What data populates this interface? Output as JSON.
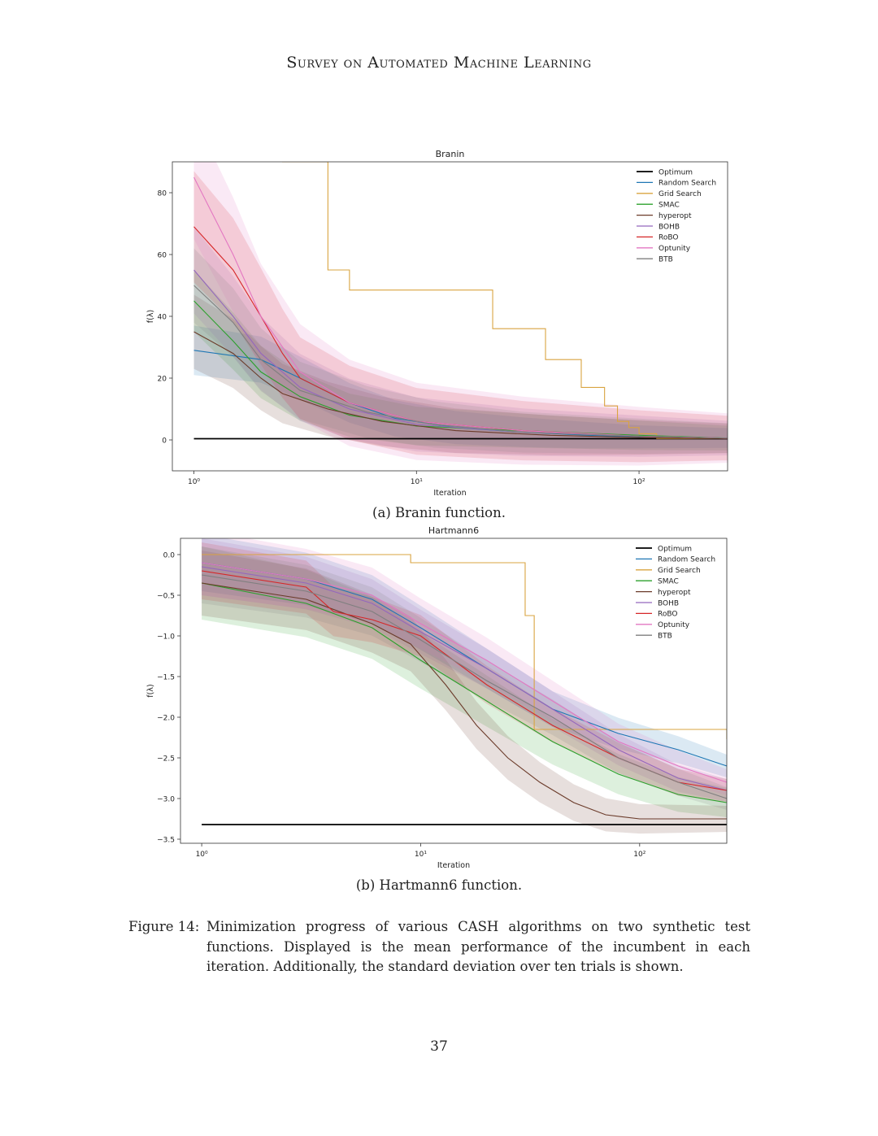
{
  "header": {
    "running_title": "Survey on Automated Machine Learning"
  },
  "figure": {
    "label": "Figure 14:",
    "caption": "Minimization progress of various CASH algorithms on two synthetic test functions. Displayed is the mean performance of the incumbent in each iteration. Additionally, the standard deviation over ten trials is shown.",
    "subcaption_a": "(a) Branin function.",
    "subcaption_b": "(b) Hartmann6 function."
  },
  "page_number": "37",
  "colors": {
    "Optimum": "#000000",
    "Random Search": "#1f77b4",
    "Grid Search": "#d9a441",
    "SMAC": "#2ca02c",
    "hyperopt": "#6b3b2a",
    "BOHB": "#9467bd",
    "RoBO": "#d62728",
    "Optunity": "#e377c2",
    "BTB": "#7f7f7f"
  },
  "chart_data": [
    {
      "type": "line",
      "title": "Branin",
      "xlabel": "Iteration",
      "ylabel": "f(λ)",
      "xscale": "log",
      "xlim": [
        0.8,
        250
      ],
      "ylim": [
        -10,
        90
      ],
      "xticks": [
        {
          "value": 1,
          "label": "10⁰"
        },
        {
          "value": 10,
          "label": "10¹"
        },
        {
          "value": 100,
          "label": "10²"
        }
      ],
      "yticks": [
        0,
        20,
        40,
        60,
        80
      ],
      "legend": [
        "Optimum",
        "Random Search",
        "Grid Search",
        "SMAC",
        "hyperopt",
        "BOHB",
        "RoBO",
        "Optunity",
        "BTB"
      ],
      "legend_position": "top-right",
      "series": [
        {
          "name": "Optimum",
          "x": [
            1,
            250
          ],
          "y": [
            0.4,
            0.4
          ],
          "band": 0
        },
        {
          "name": "Grid Search",
          "step": true,
          "x": [
            1,
            2.5,
            4,
            5,
            20,
            22,
            35,
            38,
            50,
            55,
            70,
            80,
            90,
            100,
            120,
            250
          ],
          "y": [
            150,
            90,
            55,
            48.5,
            48.5,
            36,
            36,
            26,
            26,
            17,
            11,
            6,
            4,
            2,
            0.5,
            0.5
          ],
          "band": 0
        },
        {
          "name": "Random Search",
          "x": [
            1,
            2,
            3,
            5,
            8,
            15,
            30,
            60,
            100,
            250
          ],
          "y": [
            29,
            26,
            20,
            12,
            7,
            4,
            2.5,
            1.5,
            1,
            0.6
          ],
          "band": 8
        },
        {
          "name": "SMAC",
          "x": [
            1,
            1.5,
            2,
            3,
            5,
            10,
            30,
            100,
            250
          ],
          "y": [
            45,
            32,
            22,
            14,
            8,
            4.5,
            3,
            1.5,
            0.6
          ],
          "band": 10
        },
        {
          "name": "hyperopt",
          "x": [
            1,
            1.5,
            2,
            2.5,
            4,
            7,
            15,
            40,
            100,
            250
          ],
          "y": [
            35,
            28,
            20,
            15,
            10,
            6,
            3,
            1.5,
            0.8,
            0.5
          ],
          "band": 12
        },
        {
          "name": "BOHB",
          "x": [
            1,
            1.5,
            2,
            3,
            5,
            10,
            30,
            100,
            250
          ],
          "y": [
            55,
            40,
            28,
            17,
            10,
            5,
            2.5,
            1.2,
            0.6
          ],
          "band": 14
        },
        {
          "name": "RoBO",
          "x": [
            1,
            1.5,
            2,
            2.5,
            3,
            5,
            10,
            30,
            100,
            250
          ],
          "y": [
            69,
            55,
            40,
            28,
            20,
            12,
            6,
            3,
            1.2,
            0.6
          ],
          "band": 18
        },
        {
          "name": "Optunity",
          "x": [
            1,
            1.5,
            2,
            3,
            5,
            10,
            30,
            100,
            250
          ],
          "y": [
            85,
            60,
            40,
            22,
            12,
            6,
            3,
            1.2,
            0.6
          ],
          "band": 20
        },
        {
          "name": "BTB",
          "x": [
            1,
            1.5,
            2,
            3,
            6,
            12,
            30,
            100,
            250
          ],
          "y": [
            50,
            38,
            26,
            16,
            9,
            5,
            2.5,
            1.2,
            0.6
          ],
          "band": 12
        }
      ]
    },
    {
      "type": "line",
      "title": "Hartmann6",
      "xlabel": "Iteration",
      "ylabel": "f(λ)",
      "xscale": "log",
      "xlim": [
        0.8,
        250
      ],
      "ylim": [
        -3.55,
        0.2
      ],
      "xticks": [
        {
          "value": 1,
          "label": "10⁰"
        },
        {
          "value": 10,
          "label": "10¹"
        },
        {
          "value": 100,
          "label": "10²"
        }
      ],
      "yticks": [
        0.0,
        -0.5,
        -1.0,
        -1.5,
        -2.0,
        -2.5,
        -3.0,
        -3.5
      ],
      "legend": [
        "Optimum",
        "Random Search",
        "Grid Search",
        "SMAC",
        "hyperopt",
        "BOHB",
        "RoBO",
        "Optunity",
        "BTB"
      ],
      "legend_position": "top-right",
      "series": [
        {
          "name": "Optimum",
          "x": [
            1,
            250
          ],
          "y": [
            -3.32,
            -3.32
          ],
          "band": 0
        },
        {
          "name": "Grid Search",
          "step": true,
          "x": [
            1,
            9,
            30,
            33,
            250
          ],
          "y": [
            0.0,
            -0.1,
            -0.75,
            -2.15,
            -2.27
          ],
          "band": 0
        },
        {
          "name": "Random Search",
          "x": [
            1,
            3,
            6,
            10,
            20,
            40,
            80,
            150,
            250
          ],
          "y": [
            -0.1,
            -0.3,
            -0.55,
            -0.9,
            -1.4,
            -1.9,
            -2.2,
            -2.4,
            -2.6
          ],
          "band": 0.35
        },
        {
          "name": "SMAC",
          "x": [
            1,
            3,
            6,
            10,
            20,
            40,
            80,
            150,
            250
          ],
          "y": [
            -0.35,
            -0.6,
            -0.9,
            -1.3,
            -1.8,
            -2.3,
            -2.7,
            -2.95,
            -3.05
          ],
          "band": 0.45
        },
        {
          "name": "hyperopt",
          "x": [
            1,
            3,
            6,
            9,
            13,
            18,
            25,
            35,
            50,
            70,
            100,
            250
          ],
          "y": [
            -0.35,
            -0.55,
            -0.85,
            -1.1,
            -1.6,
            -2.1,
            -2.5,
            -2.8,
            -3.05,
            -3.2,
            -3.25,
            -3.25
          ],
          "band": 0.4
        },
        {
          "name": "BOHB",
          "x": [
            1,
            3,
            6,
            10,
            20,
            40,
            80,
            150,
            250
          ],
          "y": [
            -0.15,
            -0.35,
            -0.6,
            -0.95,
            -1.4,
            -1.9,
            -2.4,
            -2.75,
            -2.9
          ],
          "band": 0.35
        },
        {
          "name": "RoBO",
          "x": [
            1,
            3,
            4,
            6,
            10,
            20,
            40,
            80,
            150,
            250
          ],
          "y": [
            -0.2,
            -0.4,
            -0.7,
            -0.8,
            -1.0,
            -1.6,
            -2.1,
            -2.5,
            -2.8,
            -2.9
          ],
          "band": 0.35
        },
        {
          "name": "Optunity",
          "x": [
            1,
            3,
            6,
            10,
            20,
            40,
            80,
            150,
            250
          ],
          "y": [
            -0.1,
            -0.3,
            -0.5,
            -0.85,
            -1.3,
            -1.8,
            -2.3,
            -2.6,
            -2.8
          ],
          "band": 0.4
        },
        {
          "name": "BTB",
          "x": [
            1,
            3,
            6,
            10,
            20,
            40,
            80,
            150,
            250
          ],
          "y": [
            -0.25,
            -0.45,
            -0.7,
            -1.05,
            -1.55,
            -2.0,
            -2.5,
            -2.8,
            -3.0
          ],
          "band": 0.35
        }
      ]
    }
  ]
}
